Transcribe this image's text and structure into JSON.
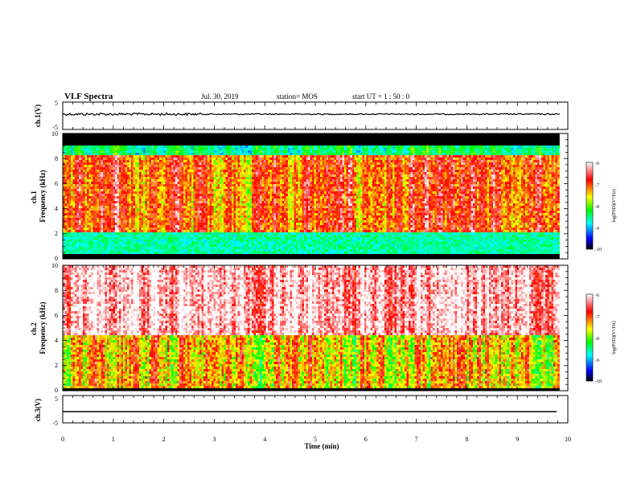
{
  "header": {
    "title": "VLF Spectra",
    "date": "Jul. 30, 2019",
    "station": "station= MOS",
    "start": "start  UT =   1 : 50 : 0"
  },
  "chart_data": {
    "type": "heatmap",
    "xlabel": "Time  (min)",
    "xlim": [
      0,
      10
    ],
    "xticks": [
      "0",
      "1",
      "2",
      "3",
      "4",
      "5",
      "6",
      "7",
      "8",
      "9",
      "10"
    ],
    "panels": [
      {
        "kind": "waveform",
        "ylabel": "ch.1(V)",
        "ylim": [
          -5,
          5
        ],
        "yticks": [
          "5",
          "-5"
        ],
        "level": 0
      },
      {
        "kind": "spectrogram",
        "ylabel": "ch.1\nFrequency (kHz)",
        "ylim": [
          0,
          10
        ],
        "yticks": [
          "0",
          "2",
          "4",
          "6",
          "8",
          "10"
        ],
        "colorbar": {
          "label": "log(PSD)(V²/Hz)",
          "range": [
            -10,
            -6
          ],
          "ticks": [
            "-6",
            "-7",
            "-8",
            "-9",
            "-10"
          ]
        }
      },
      {
        "kind": "spectrogram",
        "ylabel": "ch.2\nFrequency (kHz)",
        "ylim": [
          0,
          10
        ],
        "yticks": [
          "0",
          "2",
          "4",
          "6",
          "8",
          "10"
        ],
        "colorbar": {
          "label": "log(PSD)(V²/Hz)",
          "range": [
            -10,
            -6
          ],
          "ticks": [
            "-6",
            "-7",
            "-8",
            "-9",
            "-10"
          ]
        }
      },
      {
        "kind": "waveform",
        "ylabel": "ch.3(V)",
        "ylim": [
          -5,
          5
        ],
        "yticks": [
          "5",
          "-5"
        ],
        "level": 0
      }
    ],
    "data_end_min": 9.85
  },
  "colors": {
    "scale": [
      "#000080",
      "#0000ff",
      "#00c8ff",
      "#00ff80",
      "#80ff00",
      "#ffff00",
      "#ff8000",
      "#ff0000",
      "#ffffff"
    ]
  }
}
